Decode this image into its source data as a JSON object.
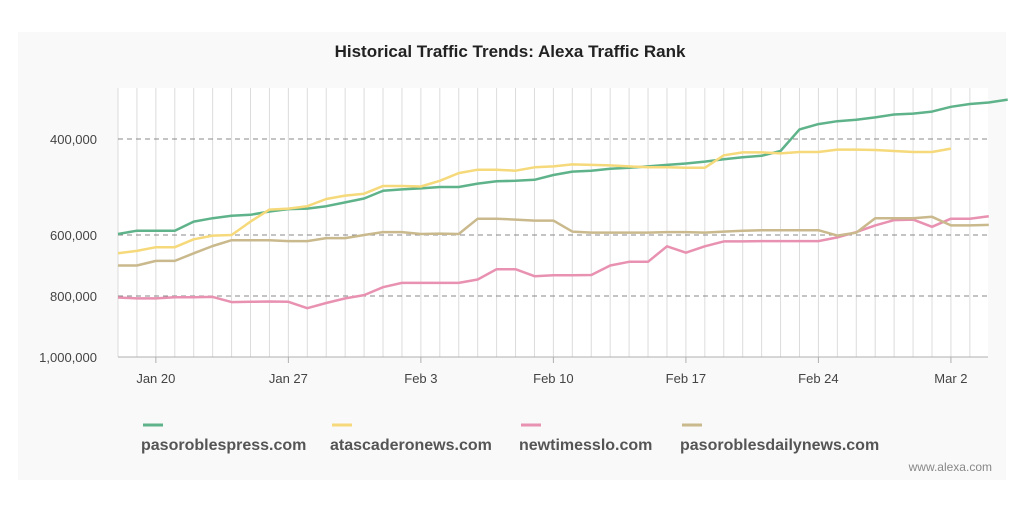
{
  "chart_data": {
    "type": "line",
    "title": "Historical Traffic Trends: Alexa Traffic Rank",
    "xlabel": "",
    "ylabel": "",
    "x_start": "2018-01-18",
    "x_step_days": 1,
    "x_ticks": [
      "Jan 20",
      "Jan 27",
      "Feb 3",
      "Feb 10",
      "Feb 17",
      "Feb 24",
      "Mar 2"
    ],
    "y_ticks": [
      "400,000",
      "600,000",
      "800,000",
      "1,000,000"
    ],
    "y_tick_values": [
      400000,
      600000,
      800000,
      1000000
    ],
    "y_axis": "reversed rank",
    "legend_position": "bottom",
    "grid": true,
    "series": [
      {
        "name": "pasoroblespress.com",
        "color": "#5fb38a",
        "values": [
          598000,
          591000,
          591000,
          591000,
          572000,
          565000,
          560000,
          558000,
          551000,
          546000,
          545000,
          540000,
          532000,
          524000,
          508000,
          505000,
          503000,
          500000,
          500000,
          493000,
          488000,
          487000,
          485000,
          475000,
          468000,
          466000,
          462000,
          460000,
          457000,
          454000,
          451000,
          447000,
          442000,
          438000,
          435000,
          425000,
          380000,
          369000,
          363000,
          360000,
          355000,
          349000,
          347000,
          343000,
          333000,
          327000,
          324000,
          318000
        ]
      },
      {
        "name": "atascaderonews.com",
        "color": "#f5d97a",
        "values": [
          660000,
          652000,
          640000,
          640000,
          614000,
          602000,
          600000,
          572000,
          547000,
          545000,
          540000,
          525000,
          518000,
          514000,
          498000,
          498000,
          499000,
          487000,
          471000,
          464000,
          464000,
          466000,
          459000,
          457000,
          453000,
          454000,
          455000,
          457000,
          459000,
          459000,
          460000,
          460000,
          434000,
          428000,
          428000,
          430000,
          427000,
          427000,
          422000,
          422000,
          423000,
          425000,
          427000,
          427000,
          420000
        ]
      },
      {
        "name": "newtimesslo.com",
        "color": "#e891b1",
        "values": [
          805000,
          808000,
          808000,
          804000,
          804000,
          803000,
          820000,
          819000,
          818000,
          819000,
          840000,
          823000,
          808000,
          797000,
          771000,
          757000,
          757000,
          757000,
          757000,
          746000,
          712000,
          712000,
          735000,
          732000,
          732000,
          731000,
          700000,
          688000,
          688000,
          637000,
          658000,
          637000,
          621000,
          621000,
          620000,
          620000,
          620000,
          620000,
          608000,
          594000,
          580000,
          569000,
          568000,
          583000,
          566000,
          566000,
          561000
        ]
      },
      {
        "name": "pasoroblesdailynews.com",
        "color": "#c9b98c",
        "values": [
          700000,
          700000,
          685000,
          685000,
          660000,
          636000,
          617000,
          617000,
          617000,
          620000,
          620000,
          610000,
          610000,
          600000,
          594000,
          594000,
          598000,
          597000,
          598000,
          566000,
          566000,
          568000,
          570000,
          570000,
          593000,
          595000,
          595000,
          595000,
          595000,
          594000,
          594000,
          595000,
          593000,
          591000,
          590000,
          590000,
          590000,
          590000,
          602000,
          595000,
          565000,
          565000,
          565000,
          562000,
          580000,
          580000,
          579000
        ]
      }
    ]
  },
  "credit": "www.alexa.com"
}
